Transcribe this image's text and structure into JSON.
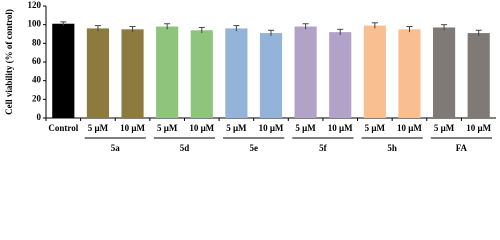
{
  "chart_data": {
    "type": "bar",
    "ylabel": "Cell viability (% of control)",
    "ylim": [
      0,
      120
    ],
    "yticks": [
      0,
      20,
      40,
      60,
      80,
      100,
      120
    ],
    "groups": [
      {
        "categories": [
          "Control"
        ],
        "values": [
          101
        ],
        "errors": [
          2
        ],
        "color": "#000000"
      },
      {
        "label": "5a",
        "categories": [
          "5 μM",
          "10 μM"
        ],
        "values": [
          96,
          95
        ],
        "errors": [
          3,
          3
        ],
        "color": "#8c7a3f"
      },
      {
        "label": "5d",
        "categories": [
          "5 μM",
          "10 μM"
        ],
        "values": [
          98,
          94
        ],
        "errors": [
          3,
          3
        ],
        "color": "#8ec47c"
      },
      {
        "label": "5e",
        "categories": [
          "5 μM",
          "10 μM"
        ],
        "values": [
          96,
          91
        ],
        "errors": [
          3,
          3
        ],
        "color": "#93b3d8"
      },
      {
        "label": "5f",
        "categories": [
          "5 μM",
          "10 μM"
        ],
        "values": [
          98,
          92
        ],
        "errors": [
          3,
          3
        ],
        "color": "#b3a2c8"
      },
      {
        "label": "5h",
        "categories": [
          "5 μM",
          "10 μM"
        ],
        "values": [
          99,
          95
        ],
        "errors": [
          3,
          3
        ],
        "color": "#f9bf90"
      },
      {
        "label": "FA",
        "categories": [
          "5 μM",
          "10 μM"
        ],
        "values": [
          97,
          91
        ],
        "errors": [
          3,
          3
        ],
        "color": "#7f7a76"
      }
    ]
  }
}
